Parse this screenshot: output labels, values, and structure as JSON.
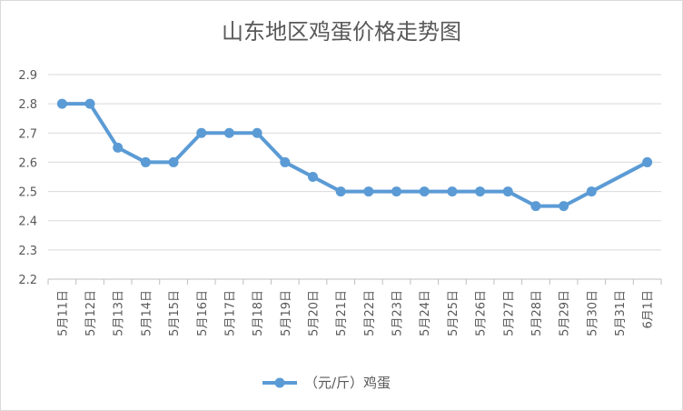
{
  "chart_data": {
    "type": "line",
    "title": "山东地区鸡蛋价格走势图",
    "xlabel": "",
    "ylabel": "",
    "ylim": [
      2.2,
      2.9
    ],
    "yticks": [
      "2.2",
      "2.3",
      "2.4",
      "2.5",
      "2.6",
      "2.7",
      "2.8",
      "2.9"
    ],
    "grid": true,
    "legend_position": "bottom",
    "categories": [
      "5月11日",
      "5月12日",
      "5月13日",
      "5月14日",
      "5月15日",
      "5月16日",
      "5月17日",
      "5月18日",
      "5月19日",
      "5月20日",
      "5月21日",
      "5月22日",
      "5月23日",
      "5月24日",
      "5月25日",
      "5月26日",
      "5月27日",
      "5月28日",
      "5月29日",
      "5月30日",
      "5月31日",
      "6月1日"
    ],
    "series": [
      {
        "name": "（元/斤）鸡蛋",
        "color": "#5b9bd5",
        "values": [
          2.8,
          2.8,
          2.65,
          2.6,
          2.6,
          2.7,
          2.7,
          2.7,
          2.6,
          2.55,
          2.5,
          2.5,
          2.5,
          2.5,
          2.5,
          2.5,
          2.5,
          2.45,
          2.45,
          2.5,
          null,
          2.6
        ]
      }
    ]
  }
}
